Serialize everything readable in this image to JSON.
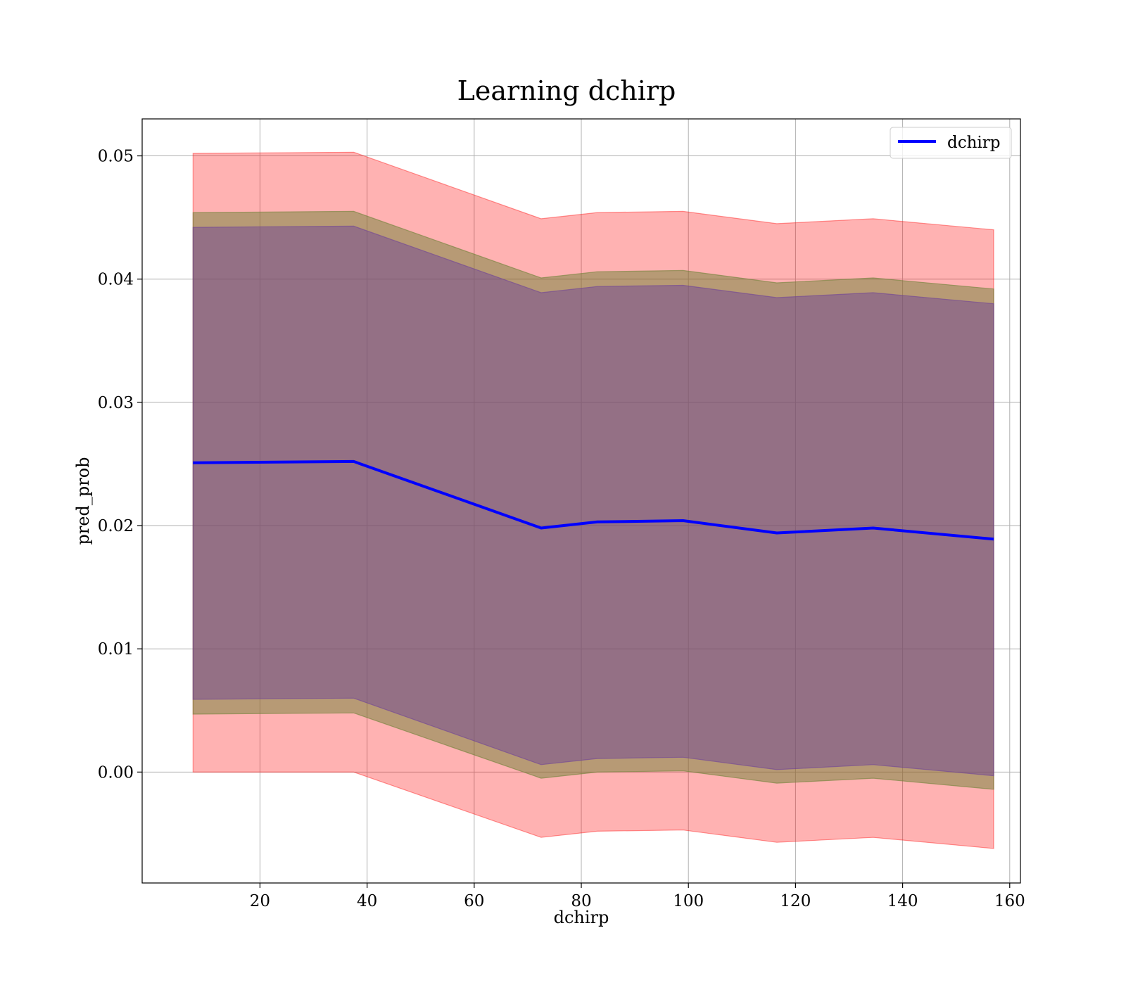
{
  "chart_data": {
    "type": "line",
    "title": "Learning dchirp",
    "xlabel": "dchirp",
    "ylabel": "pred_prob",
    "xlim": [
      -2,
      162
    ],
    "ylim": [
      -0.009,
      0.053
    ],
    "xticks": [
      20,
      40,
      60,
      80,
      100,
      120,
      140,
      160
    ],
    "xtick_labels": [
      "20",
      "40",
      "60",
      "80",
      "100",
      "120",
      "140",
      "160"
    ],
    "yticks": [
      0.0,
      0.01,
      0.02,
      0.03,
      0.04,
      0.05
    ],
    "ytick_labels": [
      "0.00",
      "0.01",
      "0.02",
      "0.03",
      "0.04",
      "0.05"
    ],
    "grid": true,
    "legend": {
      "position": "top-right",
      "entries": [
        "dchirp"
      ]
    },
    "x": [
      7.5,
      37.5,
      72.5,
      83,
      99,
      116.5,
      134.5,
      157
    ],
    "series": [
      {
        "name": "dchirp",
        "color": "#0000ff",
        "values": [
          0.0251,
          0.0252,
          0.0198,
          0.0203,
          0.0204,
          0.0194,
          0.0198,
          0.0189
        ]
      }
    ],
    "bands": [
      {
        "color": "#ff0000",
        "opacity": 0.3,
        "lower": [
          0.0,
          0.0,
          -0.0053,
          -0.0048,
          -0.0047,
          -0.0057,
          -0.0053,
          -0.0062
        ],
        "upper": [
          0.0502,
          0.0503,
          0.0449,
          0.0454,
          0.0455,
          0.0445,
          0.0449,
          0.044
        ]
      },
      {
        "color": "#708238",
        "opacity": 0.5,
        "lower": [
          0.0047,
          0.0048,
          -0.0005,
          0.0,
          0.0001,
          -0.0009,
          -0.0005,
          -0.0014
        ],
        "upper": [
          0.0454,
          0.0455,
          0.0401,
          0.0406,
          0.0407,
          0.0397,
          0.0401,
          0.0392
        ]
      },
      {
        "color": "#6a3d9a",
        "opacity": 0.45,
        "lower": [
          0.0059,
          0.006,
          0.0006,
          0.0011,
          0.0012,
          0.0002,
          0.0006,
          -0.0003
        ],
        "upper": [
          0.0442,
          0.0443,
          0.0389,
          0.0394,
          0.0395,
          0.0385,
          0.0389,
          0.038
        ]
      }
    ]
  }
}
